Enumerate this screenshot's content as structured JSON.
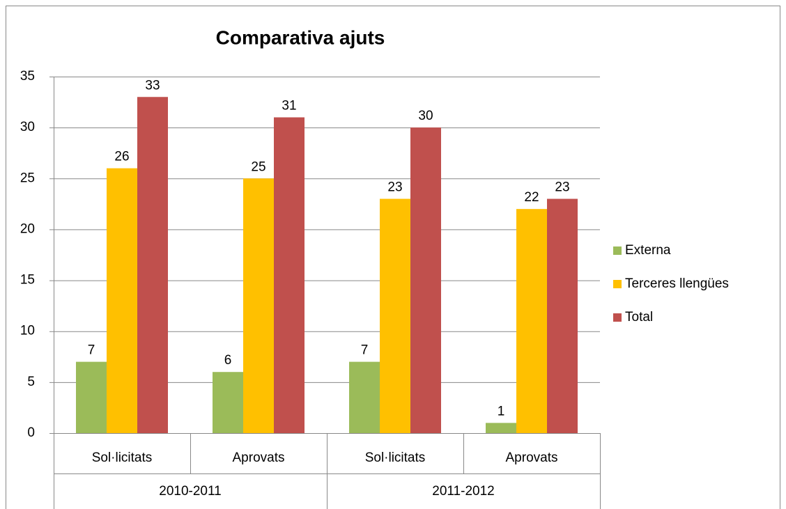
{
  "chart_data": {
    "type": "bar",
    "title": "Comparativa ajuts",
    "categories": [
      "Sol·licitats",
      "Aprovats",
      "Sol·licitats",
      "Aprovats"
    ],
    "category_groups": [
      "2010-2011",
      "2011-2012"
    ],
    "series": [
      {
        "name": "Externa",
        "color": "#9bbb59",
        "values": [
          7,
          6,
          7,
          1
        ]
      },
      {
        "name": "Terceres llengües",
        "color": "#ffc000",
        "values": [
          26,
          25,
          23,
          22
        ]
      },
      {
        "name": "Total",
        "color": "#c0504d",
        "values": [
          33,
          31,
          30,
          23
        ]
      }
    ],
    "ylim": [
      0,
      35
    ],
    "yticks": [
      0,
      5,
      10,
      15,
      20,
      25,
      30,
      35
    ],
    "grid": true,
    "legend": "right"
  }
}
